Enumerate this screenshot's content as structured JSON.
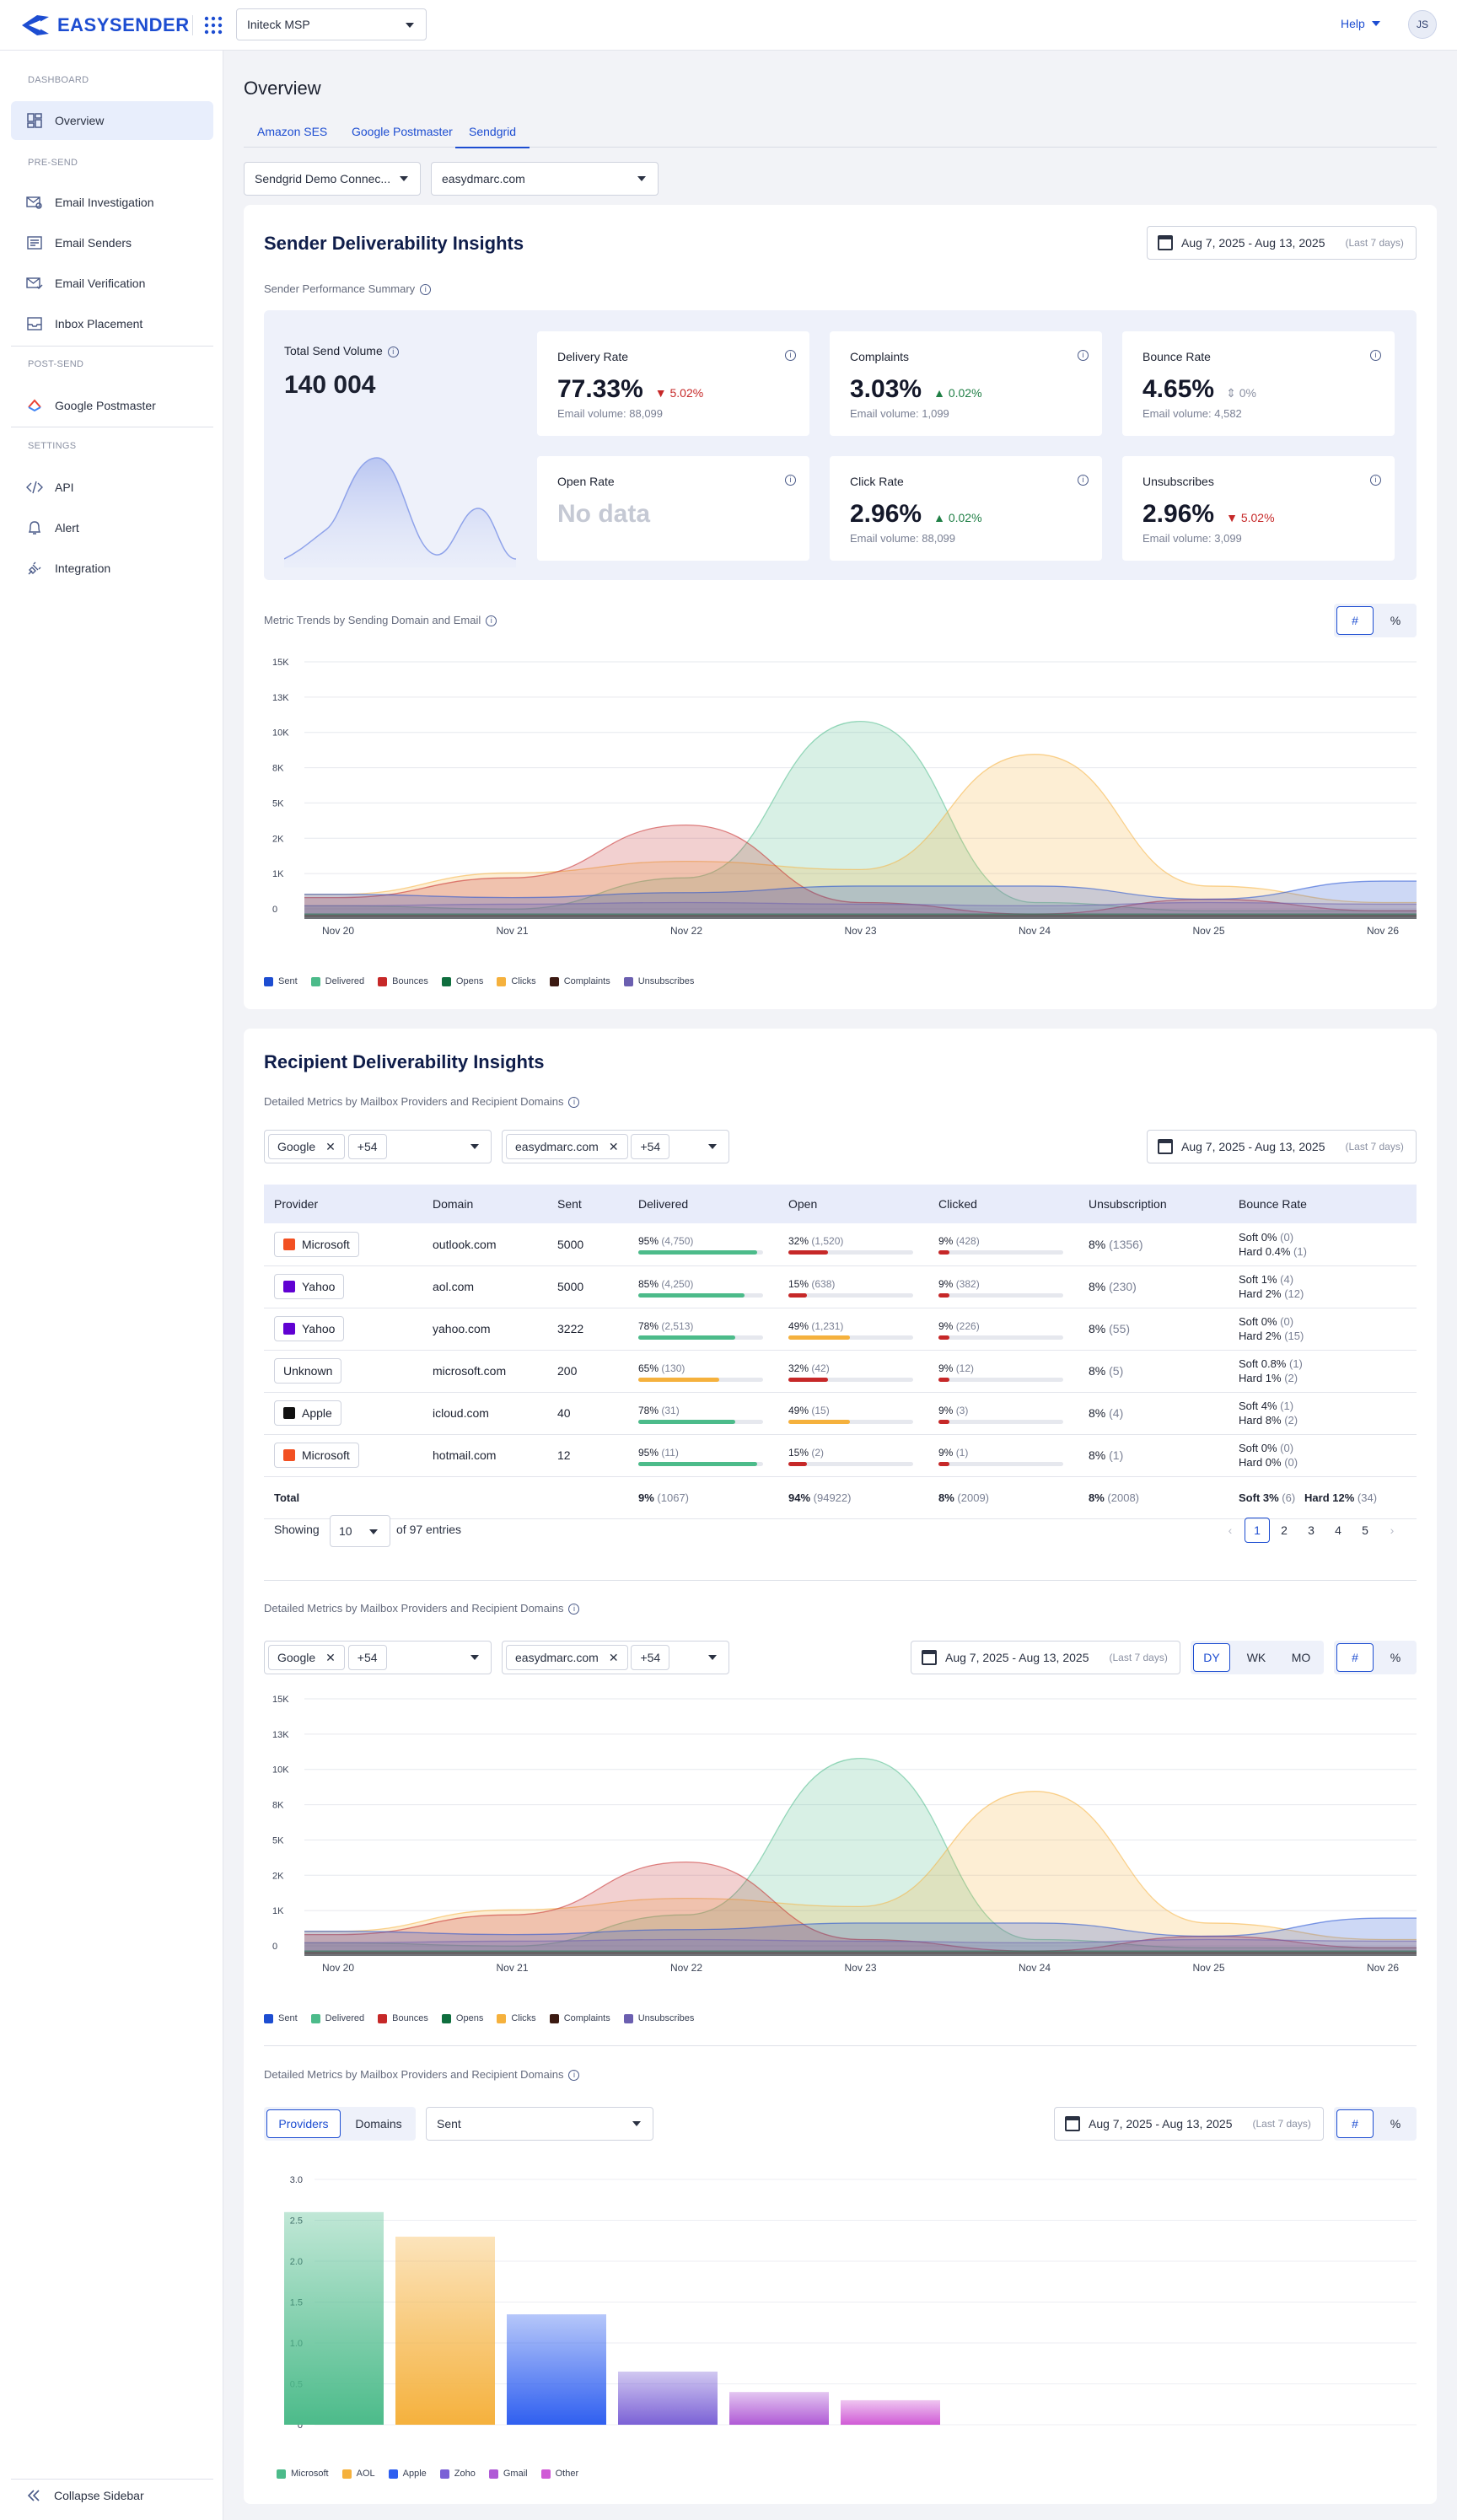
{
  "app": {
    "brand": "EASYSENDER",
    "org": "Initeck MSP",
    "help": "Help",
    "user_initials": "JS"
  },
  "sidebar": {
    "sections": [
      "DASHBOARD",
      "PRE-SEND",
      "POST-SEND",
      "SETTINGS"
    ],
    "items": [
      {
        "label": "Overview",
        "icon": "overview-icon"
      },
      {
        "label": "Email Investigation",
        "icon": "envelope-search-icon"
      },
      {
        "label": "Email Senders",
        "icon": "senders-icon"
      },
      {
        "label": "Email Verification",
        "icon": "verification-icon"
      },
      {
        "label": "Inbox Placement",
        "icon": "inbox-icon"
      },
      {
        "label": "Google Postmaster",
        "icon": "google-icon"
      },
      {
        "label": "API",
        "icon": "code-icon"
      },
      {
        "label": "Alert",
        "icon": "bell-icon"
      },
      {
        "label": "Integration",
        "icon": "plug-icon"
      }
    ],
    "collapse": "Collapse Sidebar"
  },
  "page": {
    "title": "Overview",
    "tabs": [
      "Amazon SES",
      "Google Postmaster",
      "Sendgrid"
    ],
    "active_tab": "Sendgrid",
    "connection": "Sendgrid Demo Connec...",
    "domain": "easydmarc.com"
  },
  "sender": {
    "title": "Sender Deliverability Insights",
    "date": "Aug 7, 2025 - Aug 13, 2025",
    "last": "(Last 7 days)",
    "summary_label": "Sender Performance Summary",
    "total_label": "Total Send Volume",
    "total_value": "140 004",
    "metrics": [
      {
        "title": "Delivery Rate",
        "value": "77.33%",
        "change": "5.02%",
        "dir": "down",
        "volume": "Email volume: 88,099"
      },
      {
        "title": "Complaints",
        "value": "3.03%",
        "change": "0.02%",
        "dir": "up",
        "volume": "Email volume: 1,099"
      },
      {
        "title": "Bounce Rate",
        "value": "4.65%",
        "change": "0%",
        "dir": "neutral",
        "volume": "Email volume: 4,582"
      },
      {
        "title": "Open Rate",
        "value": "No data",
        "change": "",
        "dir": "",
        "volume": ""
      },
      {
        "title": "Click Rate",
        "value": "2.96%",
        "change": "0.02%",
        "dir": "up",
        "volume": "Email volume: 88,099"
      },
      {
        "title": "Unsubscribes",
        "value": "2.96%",
        "change": "5.02%",
        "dir": "down",
        "volume": "Email volume: 3,099"
      }
    ],
    "trends_label": "Metric Trends by Sending Domain and Email",
    "toggle_count": "#",
    "toggle_pct": "%"
  },
  "chart_data": [
    {
      "type": "area",
      "x": [
        "Nov 20",
        "Nov 21",
        "Nov 22",
        "Nov 23",
        "Nov 24",
        "Nov 25",
        "Nov 26"
      ],
      "ylabels": [
        "0",
        "1K",
        "2K",
        "5K",
        "8K",
        "10K",
        "13K",
        "15K"
      ],
      "series": [
        {
          "name": "Sent",
          "color": "#1d4dd1",
          "values": [
            1.5,
            1.3,
            1.6,
            2.0,
            2.0,
            1.2,
            2.3
          ]
        },
        {
          "name": "Delivered",
          "color": "#4cbb8a",
          "values": [
            0.8,
            0.6,
            2.5,
            12.0,
            1.0,
            0.5,
            0.5
          ]
        },
        {
          "name": "Bounces",
          "color": "#c62828",
          "values": [
            1.3,
            2.5,
            5.7,
            1.0,
            0.3,
            1.2,
            0.5
          ]
        },
        {
          "name": "Opens",
          "color": "#0f6e3e",
          "values": [
            0.3,
            0.3,
            0.3,
            0.3,
            0.3,
            0.3,
            0.3
          ]
        },
        {
          "name": "Clicks",
          "color": "#f5b13d",
          "values": [
            1.5,
            2.8,
            3.5,
            3.0,
            10.0,
            2.0,
            1.0
          ]
        },
        {
          "name": "Complaints",
          "color": "#3c1a12",
          "values": [
            0.2,
            0.2,
            0.2,
            0.2,
            0.2,
            0.2,
            0.2
          ]
        },
        {
          "name": "Unsubscribes",
          "color": "#6b5fb0",
          "values": [
            0.8,
            0.9,
            1.0,
            0.9,
            0.8,
            1.0,
            0.9
          ]
        }
      ]
    },
    {
      "type": "area",
      "x": [
        "Nov 20",
        "Nov 21",
        "Nov 22",
        "Nov 23",
        "Nov 24",
        "Nov 25",
        "Nov 26"
      ],
      "ylabels": [
        "0",
        "1K",
        "2K",
        "5K",
        "8K",
        "10K",
        "13K",
        "15K"
      ],
      "series": [
        {
          "name": "Sent",
          "color": "#1d4dd1",
          "values": [
            1.5,
            1.3,
            1.6,
            2.0,
            2.0,
            1.2,
            2.3
          ]
        },
        {
          "name": "Delivered",
          "color": "#4cbb8a",
          "values": [
            0.8,
            0.6,
            2.5,
            12.0,
            1.0,
            0.5,
            0.5
          ]
        },
        {
          "name": "Bounces",
          "color": "#c62828",
          "values": [
            1.3,
            2.5,
            5.7,
            1.0,
            0.3,
            1.2,
            0.5
          ]
        },
        {
          "name": "Opens",
          "color": "#0f6e3e",
          "values": [
            0.3,
            0.3,
            0.3,
            0.3,
            0.3,
            0.3,
            0.3
          ]
        },
        {
          "name": "Clicks",
          "color": "#f5b13d",
          "values": [
            1.5,
            2.8,
            3.5,
            3.0,
            10.0,
            2.0,
            1.0
          ]
        },
        {
          "name": "Complaints",
          "color": "#3c1a12",
          "values": [
            0.2,
            0.2,
            0.2,
            0.2,
            0.2,
            0.2,
            0.2
          ]
        },
        {
          "name": "Unsubscribes",
          "color": "#6b5fb0",
          "values": [
            0.8,
            0.9,
            1.0,
            0.9,
            0.8,
            1.0,
            0.9
          ]
        }
      ]
    },
    {
      "type": "bar",
      "categories": [
        "Microsoft",
        "AOL",
        "Apple",
        "Zoho",
        "Gmail",
        "Other"
      ],
      "values": [
        2.6,
        2.3,
        1.35,
        0.65,
        0.4,
        0.3
      ],
      "colors": [
        "#4cbb8a",
        "#f5b13d",
        "#2f5ff0",
        "#7b61d6",
        "#b05ad6",
        "#d05ad6"
      ],
      "ylim": [
        0,
        3.0
      ],
      "yticks": [
        "0",
        "0.5",
        "1.0",
        "1.5",
        "2.0",
        "2.5",
        "3.0"
      ]
    }
  ],
  "recipient": {
    "title": "Recipient Deliverability Insights",
    "section_label": "Detailed Metrics by Mailbox Providers and Recipient Domains",
    "provider_chip": "Google",
    "domain_chip": "easydmarc.com",
    "more": "+54",
    "date": "Aug 7, 2025 - Aug 13, 2025",
    "last": "(Last 7 days)",
    "columns": [
      "Provider",
      "Domain",
      "Sent",
      "Delivered",
      "Open",
      "Clicked",
      "Unsubscription",
      "Bounce Rate"
    ],
    "rows": [
      {
        "provider": "Microsoft",
        "domain": "outlook.com",
        "sent": "5000",
        "del": "95%",
        "del_n": "(4,750)",
        "del_f": 0.95,
        "open": "32%",
        "open_n": "(1,520)",
        "open_f": 0.32,
        "click": "9%",
        "click_n": "(428)",
        "click_f": 0.09,
        "unsub": "8%",
        "unsub_n": "(1356)",
        "soft": "Soft  0%",
        "soft_n": "(0)",
        "hard": "Hard 0.4%",
        "hard_n": "(1)"
      },
      {
        "provider": "Yahoo",
        "domain": "aol.com",
        "sent": "5000",
        "del": "85%",
        "del_n": "(4,250)",
        "del_f": 0.85,
        "open": "15%",
        "open_n": "(638)",
        "open_f": 0.15,
        "click": "9%",
        "click_n": "(382)",
        "click_f": 0.09,
        "unsub": "8%",
        "unsub_n": "(230)",
        "soft": "Soft  1%",
        "soft_n": "(4)",
        "hard": "Hard 2%",
        "hard_n": "(12)"
      },
      {
        "provider": "Yahoo",
        "domain": "yahoo.com",
        "sent": "3222",
        "del": "78%",
        "del_n": "(2,513)",
        "del_f": 0.78,
        "open": "49%",
        "open_n": "(1,231)",
        "open_f": 0.49,
        "click": "9%",
        "click_n": "(226)",
        "click_f": 0.09,
        "unsub": "8%",
        "unsub_n": "(55)",
        "soft": "Soft  0%",
        "soft_n": "(0)",
        "hard": "Hard 2%",
        "hard_n": "(15)"
      },
      {
        "provider": "Unknown",
        "domain": "microsoft.com",
        "sent": "200",
        "del": "65%",
        "del_n": "(130)",
        "del_f": 0.65,
        "open": "32%",
        "open_n": "(42)",
        "open_f": 0.32,
        "click": "9%",
        "click_n": "(12)",
        "click_f": 0.09,
        "unsub": "8%",
        "unsub_n": "(5)",
        "soft": "Soft  0.8%",
        "soft_n": "(1)",
        "hard": "Hard 1%",
        "hard_n": "(2)"
      },
      {
        "provider": "Apple",
        "domain": "icloud.com",
        "sent": "40",
        "del": "78%",
        "del_n": "(31)",
        "del_f": 0.78,
        "open": "49%",
        "open_n": "(15)",
        "open_f": 0.49,
        "click": "9%",
        "click_n": "(3)",
        "click_f": 0.09,
        "unsub": "8%",
        "unsub_n": "(4)",
        "soft": "Soft  4%",
        "soft_n": "(1)",
        "hard": "Hard 8%",
        "hard_n": "(2)"
      },
      {
        "provider": "Microsoft",
        "domain": "hotmail.com",
        "sent": "12",
        "del": "95%",
        "del_n": "(11)",
        "del_f": 0.95,
        "open": "15%",
        "open_n": "(2)",
        "open_f": 0.15,
        "click": "9%",
        "click_n": "(1)",
        "click_f": 0.09,
        "unsub": "8%",
        "unsub_n": "(1)",
        "soft": "Soft  0%",
        "soft_n": "(0)",
        "hard": "Hard 0%",
        "hard_n": "(0)"
      }
    ],
    "total": {
      "label": "Total",
      "del": "9%",
      "del_n": "(1067)",
      "open": "94%",
      "open_n": "(94922)",
      "click": "8%",
      "click_n": "(2009)",
      "unsub": "8%",
      "unsub_n": "(2008)",
      "soft": "Soft  3%",
      "soft_n": "(6)",
      "hard": "Hard 12%",
      "hard_n": "(34)"
    },
    "showing": "Showing",
    "page_size": "10",
    "entries": "of 97 entries",
    "pages": [
      "1",
      "2",
      "3",
      "4",
      "5"
    ],
    "gran": [
      "DY",
      "WK",
      "MO"
    ],
    "bar_tabs": [
      "Providers",
      "Domains"
    ],
    "bar_metric": "Sent"
  }
}
